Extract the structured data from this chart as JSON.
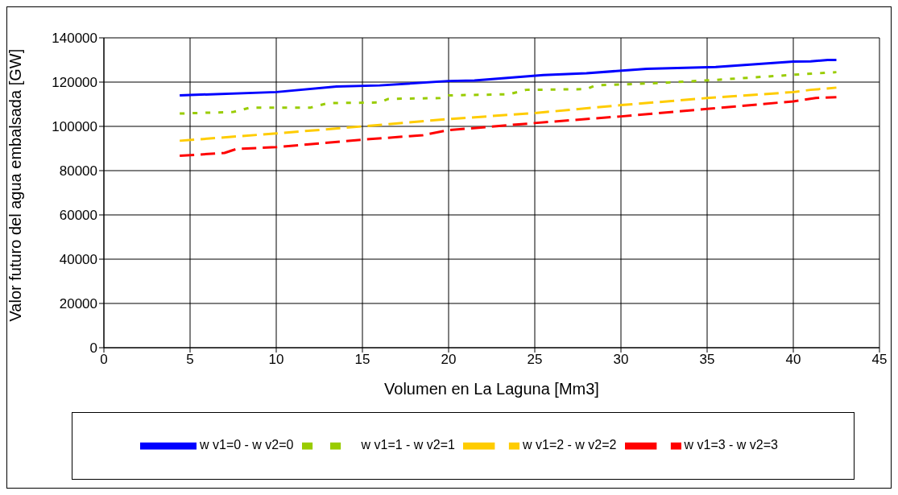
{
  "chart_data": {
    "type": "line",
    "xlabel": "Volumen en La Laguna [Mm3]",
    "ylabel": "Valor futuro del agua embalsada [GW]",
    "xlim": [
      0,
      45
    ],
    "xticks": [
      0,
      5,
      10,
      15,
      20,
      25,
      30,
      35,
      40,
      45
    ],
    "ylim": [
      0,
      140000
    ],
    "yticks": [
      0,
      20000,
      40000,
      60000,
      80000,
      100000,
      120000,
      140000
    ],
    "grid": true,
    "legend": "bottom",
    "marker": "none",
    "series": [
      {
        "name": "w v1=0 - w v2=0",
        "color": "#0000ff",
        "line_style": "solid",
        "x": [
          4.4,
          10,
          13.5,
          16,
          20,
          21.5,
          25.5,
          28,
          31.5,
          35.5,
          40,
          41,
          42,
          42.5
        ],
        "values": [
          114000,
          115500,
          118000,
          118500,
          120500,
          120700,
          123200,
          124000,
          126000,
          126800,
          129300,
          129400,
          130000,
          130000
        ]
      },
      {
        "name": "w v1=1 - w v2=1",
        "color": "#99cc00",
        "line_style": "dotted",
        "x": [
          4.4,
          7.5,
          8.5,
          12,
          13,
          16,
          16.5,
          19.5,
          20,
          23.5,
          24.5,
          28,
          28.5,
          32,
          35.5,
          40,
          42.5
        ],
        "values": [
          105800,
          106500,
          108500,
          108500,
          110500,
          110800,
          112400,
          112800,
          114000,
          114500,
          116500,
          116800,
          118500,
          119500,
          121000,
          123300,
          124500
        ]
      },
      {
        "name": "w v1=2 - w v2=2",
        "color": "#ffcc00",
        "line_style": "dashed",
        "x": [
          4.4,
          10,
          15,
          20,
          25,
          30,
          35,
          40,
          41,
          42.5
        ],
        "values": [
          93500,
          96800,
          100000,
          103300,
          106000,
          109600,
          112800,
          115500,
          116500,
          117500
        ]
      },
      {
        "name": "w v1=3 - w v2=3",
        "color": "#ff0000",
        "line_style": "dashed",
        "x": [
          4.4,
          7,
          7.7,
          10,
          15,
          18.5,
          20,
          25,
          30,
          35,
          40,
          41.3,
          42.5
        ],
        "values": [
          86700,
          88000,
          89800,
          90600,
          94000,
          96000,
          98300,
          101500,
          104500,
          107900,
          111300,
          112800,
          113200
        ]
      }
    ]
  }
}
